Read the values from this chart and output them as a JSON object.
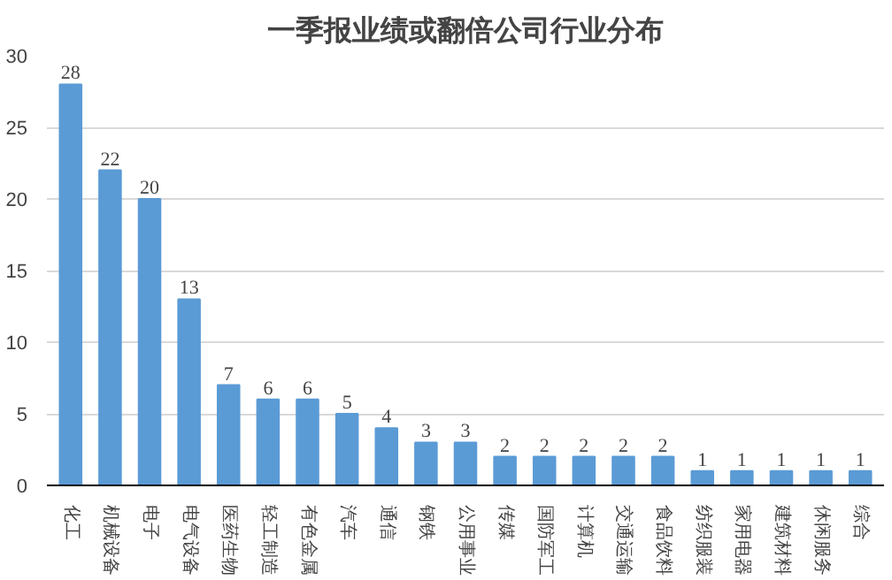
{
  "chart_data": {
    "type": "bar",
    "title": "一季报业绩或翻倍公司行业分布",
    "categories": [
      "化工",
      "机械设备",
      "电子",
      "电气设备",
      "医药生物",
      "轻工制造",
      "有色金属",
      "汽车",
      "通信",
      "钢铁",
      "公用事业",
      "传媒",
      "国防军工",
      "计算机",
      "交通运输",
      "食品饮料",
      "纺织服装",
      "家用电器",
      "建筑材料",
      "休闲服务",
      "综合"
    ],
    "values": [
      28,
      22,
      20,
      13,
      7,
      6,
      6,
      5,
      4,
      3,
      3,
      2,
      2,
      2,
      2,
      2,
      1,
      1,
      1,
      1,
      1
    ],
    "color": "#5b9bd5",
    "ylim": [
      0,
      30
    ],
    "yticks": [
      0,
      5,
      10,
      15,
      20,
      25,
      30
    ],
    "grid": "y",
    "data_labels": true
  }
}
